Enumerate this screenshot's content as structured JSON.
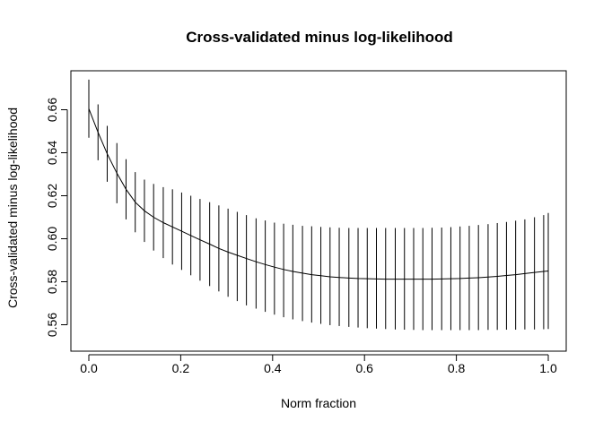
{
  "chart_data": {
    "type": "line",
    "title": "Cross-validated minus log-likelihood",
    "xlabel": "Norm fraction",
    "ylabel": "Cross-validated minus log-likelihood",
    "xlim": [
      0.0,
      1.0
    ],
    "ylim": [
      0.555,
      0.675
    ],
    "xticks": [
      0.0,
      0.2,
      0.4,
      0.6,
      0.8,
      1.0
    ],
    "xtick_labels": [
      "0.0",
      "0.2",
      "0.4",
      "0.6",
      "0.8",
      "1.0"
    ],
    "yticks": [
      0.56,
      0.58,
      0.6,
      0.62,
      0.64,
      0.66
    ],
    "ytick_labels": [
      "0.56",
      "0.58",
      "0.60",
      "0.62",
      "0.64",
      "0.66"
    ],
    "grid": false,
    "legend": "none",
    "series": [
      {
        "line_color": "#000000",
        "x": [
          0.0,
          0.02,
          0.04,
          0.061,
          0.081,
          0.101,
          0.121,
          0.141,
          0.162,
          0.182,
          0.202,
          0.222,
          0.242,
          0.263,
          0.283,
          0.303,
          0.323,
          0.343,
          0.364,
          0.384,
          0.404,
          0.424,
          0.444,
          0.465,
          0.485,
          0.505,
          0.525,
          0.545,
          0.566,
          0.586,
          0.606,
          0.626,
          0.646,
          0.667,
          0.687,
          0.707,
          0.727,
          0.747,
          0.768,
          0.788,
          0.808,
          0.828,
          0.848,
          0.869,
          0.889,
          0.909,
          0.929,
          0.949,
          0.97,
          0.99,
          1.0
        ],
        "y": [
          0.6605,
          0.6495,
          0.6395,
          0.6305,
          0.623,
          0.617,
          0.613,
          0.61,
          0.6075,
          0.6055,
          0.6035,
          0.6015,
          0.5995,
          0.5975,
          0.5955,
          0.5938,
          0.5923,
          0.5908,
          0.5893,
          0.588,
          0.5868,
          0.5857,
          0.5848,
          0.584,
          0.5833,
          0.5828,
          0.5823,
          0.582,
          0.5817,
          0.5815,
          0.5814,
          0.5813,
          0.5812,
          0.5812,
          0.5812,
          0.5812,
          0.5812,
          0.5812,
          0.5813,
          0.5814,
          0.5815,
          0.5817,
          0.5819,
          0.5822,
          0.5825,
          0.5829,
          0.5833,
          0.5838,
          0.5843,
          0.5848,
          0.585
        ],
        "lower": [
          0.647,
          0.6365,
          0.6265,
          0.6165,
          0.609,
          0.603,
          0.5985,
          0.5945,
          0.591,
          0.588,
          0.5855,
          0.583,
          0.5805,
          0.578,
          0.5755,
          0.573,
          0.571,
          0.569,
          0.5675,
          0.566,
          0.5647,
          0.5635,
          0.5625,
          0.5617,
          0.561,
          0.5604,
          0.5598,
          0.5594,
          0.559,
          0.5587,
          0.5584,
          0.5582,
          0.558,
          0.5578,
          0.5577,
          0.5576,
          0.5575,
          0.5575,
          0.5575,
          0.5575,
          0.5575,
          0.5575,
          0.5575,
          0.5576,
          0.5576,
          0.5577,
          0.5577,
          0.5578,
          0.5578,
          0.5579,
          0.558
        ],
        "upper": [
          0.674,
          0.6625,
          0.6525,
          0.6445,
          0.637,
          0.631,
          0.6275,
          0.6255,
          0.624,
          0.623,
          0.6215,
          0.62,
          0.6185,
          0.617,
          0.6155,
          0.614,
          0.6125,
          0.611,
          0.6095,
          0.6085,
          0.6075,
          0.607,
          0.6065,
          0.606,
          0.6058,
          0.6055,
          0.6053,
          0.6051,
          0.605,
          0.605,
          0.605,
          0.605,
          0.605,
          0.605,
          0.605,
          0.605,
          0.605,
          0.6051,
          0.6052,
          0.6054,
          0.6057,
          0.606,
          0.6064,
          0.6068,
          0.6073,
          0.6078,
          0.6084,
          0.609,
          0.61,
          0.611,
          0.612
        ]
      }
    ]
  }
}
